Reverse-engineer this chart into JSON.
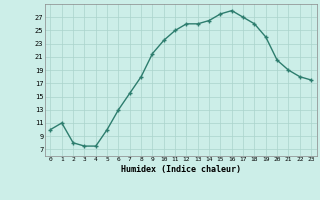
{
  "x": [
    0,
    1,
    2,
    3,
    4,
    5,
    6,
    7,
    8,
    9,
    10,
    11,
    12,
    13,
    14,
    15,
    16,
    17,
    18,
    19,
    20,
    21,
    22,
    23
  ],
  "y": [
    10,
    11,
    8,
    7.5,
    7.5,
    10,
    13,
    15.5,
    18,
    21.5,
    23.5,
    25,
    26,
    26,
    26.5,
    27.5,
    28,
    27,
    26,
    24,
    20.5,
    19,
    18,
    17.5
  ],
  "line_color": "#2d7d6e",
  "marker_color": "#2d7d6e",
  "bg_color": "#cceee8",
  "grid_color": "#aad4cc",
  "xlabel": "Humidex (Indice chaleur)",
  "ylim": [
    6,
    29
  ],
  "xlim": [
    -0.5,
    23.5
  ],
  "yticks": [
    7,
    9,
    11,
    13,
    15,
    17,
    19,
    21,
    23,
    25,
    27
  ],
  "xticks": [
    0,
    1,
    2,
    3,
    4,
    5,
    6,
    7,
    8,
    9,
    10,
    11,
    12,
    13,
    14,
    15,
    16,
    17,
    18,
    19,
    20,
    21,
    22,
    23
  ]
}
